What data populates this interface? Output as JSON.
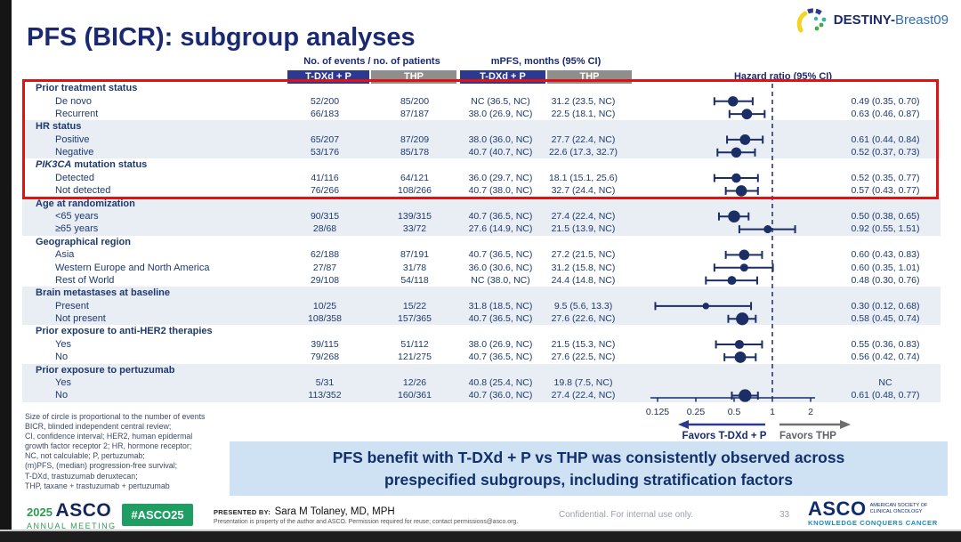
{
  "slide": {
    "title": "PFS (BICR): subgroup analyses",
    "study_name_bold": "DESTINY-",
    "study_name_light": "Breast09",
    "page_number": "33",
    "confidential": "Confidential. For internal use only."
  },
  "header": {
    "events_group": "No. of events / no. of patients",
    "mpfs_group": "mPFS, months (95% CI)",
    "hazard": "Hazard ratio (95% CI)",
    "arm_tdxd": "T-DXd + P",
    "arm_thp": "THP"
  },
  "colors": {
    "navy": "#1b2f66",
    "arm_blue": "#2b3990",
    "arm_gray": "#8e8e8e",
    "highlight_red": "#e11212",
    "row_shade": "#e9edf4",
    "banner_bg": "#cfe2f4",
    "green": "#2e9c50",
    "badge_green": "#1e9e63",
    "teal": "#1a8ac4"
  },
  "chart_data": {
    "type": "scatter",
    "subtype": "forest-plot",
    "title": "PFS (BICR): subgroup analyses",
    "x_scale": "log2",
    "x_ticks": [
      0.125,
      0.25,
      0.5,
      1,
      2
    ],
    "reference_line": 1,
    "favors_left": "Favors T-DXd + P",
    "favors_right": "Favors THP",
    "size_note": "Size of circle is proportional to the number of events",
    "groups": [
      {
        "label": "Prior treatment status",
        "shaded": false,
        "highlighted": true,
        "rows": [
          {
            "label": "De novo",
            "events_tdxd": "52/200",
            "events_thp": "85/200",
            "mpfs_tdxd": "NC (36.5, NC)",
            "mpfs_thp": "31.2 (23.5, NC)",
            "hr_text": "0.49 (0.35, 0.70)",
            "hr": 0.49,
            "lo": 0.35,
            "hi": 0.7,
            "n_events": 137
          },
          {
            "label": "Recurrent",
            "events_tdxd": "66/183",
            "events_thp": "87/187",
            "mpfs_tdxd": "38.0 (26.9, NC)",
            "mpfs_thp": "22.5 (18.1, NC)",
            "hr_text": "0.63 (0.46, 0.87)",
            "hr": 0.63,
            "lo": 0.46,
            "hi": 0.87,
            "n_events": 153
          }
        ]
      },
      {
        "label": "HR status",
        "shaded": true,
        "highlighted": true,
        "rows": [
          {
            "label": "Positive",
            "events_tdxd": "65/207",
            "events_thp": "87/209",
            "mpfs_tdxd": "38.0 (36.0, NC)",
            "mpfs_thp": "27.7 (22.4, NC)",
            "hr_text": "0.61 (0.44, 0.84)",
            "hr": 0.61,
            "lo": 0.44,
            "hi": 0.84,
            "n_events": 152
          },
          {
            "label": "Negative",
            "events_tdxd": "53/176",
            "events_thp": "85/178",
            "mpfs_tdxd": "40.7 (40.7, NC)",
            "mpfs_thp": "22.6 (17.3, 32.7)",
            "hr_text": "0.52 (0.37, 0.73)",
            "hr": 0.52,
            "lo": 0.37,
            "hi": 0.73,
            "n_events": 138
          }
        ]
      },
      {
        "label": " mutation status",
        "label_italic": "PIK3CA",
        "shaded": false,
        "highlighted": true,
        "rows": [
          {
            "label": "Detected",
            "events_tdxd": "41/116",
            "events_thp": "64/121",
            "mpfs_tdxd": "36.0 (29.7, NC)",
            "mpfs_thp": "18.1 (15.1, 25.6)",
            "hr_text": "0.52 (0.35, 0.77)",
            "hr": 0.52,
            "lo": 0.35,
            "hi": 0.77,
            "n_events": 105
          },
          {
            "label": "Not detected",
            "events_tdxd": "76/266",
            "events_thp": "108/266",
            "mpfs_tdxd": "40.7 (38.0, NC)",
            "mpfs_thp": "32.7 (24.4, NC)",
            "hr_text": "0.57 (0.43, 0.77)",
            "hr": 0.57,
            "lo": 0.43,
            "hi": 0.77,
            "n_events": 184
          }
        ]
      },
      {
        "label": "Age at randomization",
        "shaded": true,
        "highlighted": false,
        "rows": [
          {
            "label": "<65 years",
            "events_tdxd": "90/315",
            "events_thp": "139/315",
            "mpfs_tdxd": "40.7 (36.5, NC)",
            "mpfs_thp": "27.4 (22.4, NC)",
            "hr_text": "0.50 (0.38, 0.65)",
            "hr": 0.5,
            "lo": 0.38,
            "hi": 0.65,
            "n_events": 229
          },
          {
            "label": "≥65 years",
            "events_tdxd": "28/68",
            "events_thp": "33/72",
            "mpfs_tdxd": "27.6 (14.9, NC)",
            "mpfs_thp": "21.5 (13.9, NC)",
            "hr_text": "0.92 (0.55, 1.51)",
            "hr": 0.92,
            "lo": 0.55,
            "hi": 1.51,
            "n_events": 61
          }
        ]
      },
      {
        "label": "Geographical region",
        "shaded": false,
        "highlighted": false,
        "rows": [
          {
            "label": "Asia",
            "events_tdxd": "62/188",
            "events_thp": "87/191",
            "mpfs_tdxd": "40.7 (36.5, NC)",
            "mpfs_thp": "27.2 (21.5, NC)",
            "hr_text": "0.60 (0.43, 0.83)",
            "hr": 0.6,
            "lo": 0.43,
            "hi": 0.83,
            "n_events": 149
          },
          {
            "label": "Western Europe and North America",
            "events_tdxd": "27/87",
            "events_thp": "31/78",
            "mpfs_tdxd": "36.0 (30.6, NC)",
            "mpfs_thp": "31.2 (15.8, NC)",
            "hr_text": "0.60 (0.35, 1.01)",
            "hr": 0.6,
            "lo": 0.35,
            "hi": 1.01,
            "n_events": 58
          },
          {
            "label": "Rest of World",
            "events_tdxd": "29/108",
            "events_thp": "54/118",
            "mpfs_tdxd": "NC (38.0, NC)",
            "mpfs_thp": "24.4 (14.8, NC)",
            "hr_text": "0.48 (0.30, 0.76)",
            "hr": 0.48,
            "lo": 0.3,
            "hi": 0.76,
            "n_events": 83
          }
        ]
      },
      {
        "label": "Brain metastases at baseline",
        "shaded": true,
        "highlighted": false,
        "rows": [
          {
            "label": "Present",
            "events_tdxd": "10/25",
            "events_thp": "15/22",
            "mpfs_tdxd": "31.8 (18.5, NC)",
            "mpfs_thp": "9.5 (5.6, 13.3)",
            "hr_text": "0.30 (0.12, 0.68)",
            "hr": 0.3,
            "lo": 0.12,
            "hi": 0.68,
            "n_events": 25
          },
          {
            "label": "Not present",
            "events_tdxd": "108/358",
            "events_thp": "157/365",
            "mpfs_tdxd": "40.7 (36.5, NC)",
            "mpfs_thp": "27.6 (22.6, NC)",
            "hr_text": "0.58 (0.45, 0.74)",
            "hr": 0.58,
            "lo": 0.45,
            "hi": 0.74,
            "n_events": 265
          }
        ]
      },
      {
        "label": "Prior exposure to anti-HER2 therapies",
        "shaded": false,
        "highlighted": false,
        "rows": [
          {
            "label": "Yes",
            "events_tdxd": "39/115",
            "events_thp": "51/112",
            "mpfs_tdxd": "38.0 (26.9, NC)",
            "mpfs_thp": "21.5 (15.3, NC)",
            "hr_text": "0.55 (0.36, 0.83)",
            "hr": 0.55,
            "lo": 0.36,
            "hi": 0.83,
            "n_events": 90
          },
          {
            "label": "No",
            "events_tdxd": "79/268",
            "events_thp": "121/275",
            "mpfs_tdxd": "40.7 (36.5, NC)",
            "mpfs_thp": "27.6 (22.5, NC)",
            "hr_text": "0.56 (0.42, 0.74)",
            "hr": 0.56,
            "lo": 0.42,
            "hi": 0.74,
            "n_events": 200
          }
        ]
      },
      {
        "label": "Prior exposure to pertuzumab",
        "shaded": true,
        "highlighted": false,
        "rows": [
          {
            "label": "Yes",
            "events_tdxd": "5/31",
            "events_thp": "12/26",
            "mpfs_tdxd": "40.8 (25.4, NC)",
            "mpfs_thp": "19.8 (7.5, NC)",
            "hr_text": "NC",
            "hr": null,
            "lo": null,
            "hi": null,
            "n_events": 17
          },
          {
            "label": "No",
            "events_tdxd": "113/352",
            "events_thp": "160/361",
            "mpfs_tdxd": "40.7 (36.0, NC)",
            "mpfs_thp": "27.4 (22.4, NC)",
            "hr_text": "0.61 (0.48, 0.77)",
            "hr": 0.61,
            "lo": 0.48,
            "hi": 0.77,
            "n_events": 273
          }
        ]
      }
    ]
  },
  "footnote_lines": [
    "Size of circle is proportional to the number of events",
    "BICR, blinded independent central review;",
    "CI, confidence interval; HER2, human epidermal",
    "growth factor receptor 2; HR, hormone receptor;",
    "NC, not calculable; P, pertuzumab;",
    "(m)PFS, (median) progression-free survival;",
    "T-DXd, trastuzumab deruxtecan;",
    "THP, taxane + trastuzumab + pertuzumab"
  ],
  "banner": {
    "line1": "PFS benefit with T-DXd + P vs THP was consistently observed across",
    "line2": "prespecified subgroups, including stratification factors"
  },
  "footer": {
    "year": "2025",
    "asco": "ASCO",
    "annual_meeting": "ANNUAL MEETING",
    "hashtag": "#ASCO25",
    "presented_by_label": "PRESENTED BY:",
    "presenter": "Sara M Tolaney, MD, MPH",
    "permission": "Presentation is property of the author and ASCO. Permission required for reuse; contact permissions@asco.org.",
    "asco_logo": "ASCO",
    "asco_society_line1": "AMERICAN SOCIETY OF",
    "asco_society_line2": "CLINICAL ONCOLOGY",
    "asco_tagline": "KNOWLEDGE CONQUERS CANCER"
  }
}
